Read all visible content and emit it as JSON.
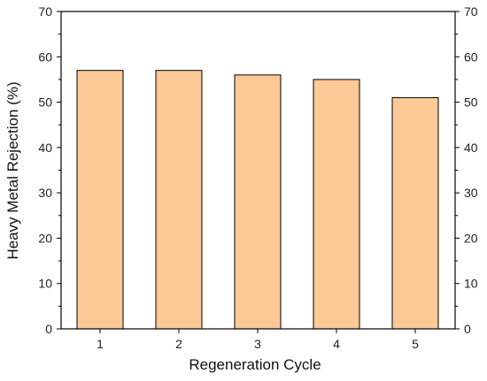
{
  "chart_data": {
    "type": "bar",
    "xlabel": "Regeneration Cycle",
    "ylabel": "Heavy Metal Rejection (%)",
    "categories": [
      "1",
      "2",
      "3",
      "4",
      "5"
    ],
    "values": [
      57,
      57,
      56,
      55,
      51
    ],
    "ylim": [
      0,
      70
    ],
    "yticks": [
      0,
      10,
      20,
      30,
      40,
      50,
      60,
      70
    ],
    "right_axis_mirrored": true,
    "grid": false,
    "legend": "none",
    "colors": {
      "bar_fill": "#fcc997",
      "bar_stroke": "#000000",
      "axis": "#000000"
    }
  }
}
